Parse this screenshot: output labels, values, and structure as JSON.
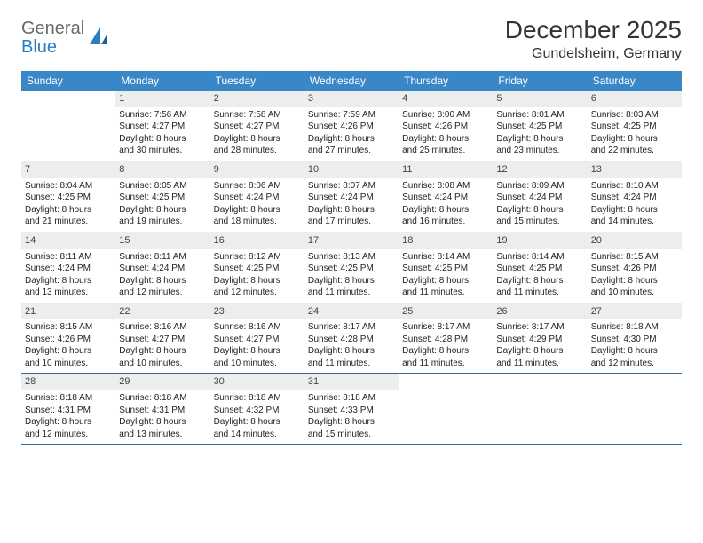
{
  "logo": {
    "general": "General",
    "blue": "Blue"
  },
  "title": "December 2025",
  "location": "Gundelsheim, Germany",
  "colors": {
    "header_bg": "#3a87c8",
    "header_text": "#ffffff",
    "date_bg": "#eceded",
    "week_border": "#3a6a9a",
    "logo_blue": "#2b7cc1",
    "logo_gray": "#6a6a6a"
  },
  "day_names": [
    "Sunday",
    "Monday",
    "Tuesday",
    "Wednesday",
    "Thursday",
    "Friday",
    "Saturday"
  ],
  "weeks": [
    [
      {
        "empty": true
      },
      {
        "d": "1",
        "sr": "Sunrise: 7:56 AM",
        "ss": "Sunset: 4:27 PM",
        "dl1": "Daylight: 8 hours",
        "dl2": "and 30 minutes."
      },
      {
        "d": "2",
        "sr": "Sunrise: 7:58 AM",
        "ss": "Sunset: 4:27 PM",
        "dl1": "Daylight: 8 hours",
        "dl2": "and 28 minutes."
      },
      {
        "d": "3",
        "sr": "Sunrise: 7:59 AM",
        "ss": "Sunset: 4:26 PM",
        "dl1": "Daylight: 8 hours",
        "dl2": "and 27 minutes."
      },
      {
        "d": "4",
        "sr": "Sunrise: 8:00 AM",
        "ss": "Sunset: 4:26 PM",
        "dl1": "Daylight: 8 hours",
        "dl2": "and 25 minutes."
      },
      {
        "d": "5",
        "sr": "Sunrise: 8:01 AM",
        "ss": "Sunset: 4:25 PM",
        "dl1": "Daylight: 8 hours",
        "dl2": "and 23 minutes."
      },
      {
        "d": "6",
        "sr": "Sunrise: 8:03 AM",
        "ss": "Sunset: 4:25 PM",
        "dl1": "Daylight: 8 hours",
        "dl2": "and 22 minutes."
      }
    ],
    [
      {
        "d": "7",
        "sr": "Sunrise: 8:04 AM",
        "ss": "Sunset: 4:25 PM",
        "dl1": "Daylight: 8 hours",
        "dl2": "and 21 minutes."
      },
      {
        "d": "8",
        "sr": "Sunrise: 8:05 AM",
        "ss": "Sunset: 4:25 PM",
        "dl1": "Daylight: 8 hours",
        "dl2": "and 19 minutes."
      },
      {
        "d": "9",
        "sr": "Sunrise: 8:06 AM",
        "ss": "Sunset: 4:24 PM",
        "dl1": "Daylight: 8 hours",
        "dl2": "and 18 minutes."
      },
      {
        "d": "10",
        "sr": "Sunrise: 8:07 AM",
        "ss": "Sunset: 4:24 PM",
        "dl1": "Daylight: 8 hours",
        "dl2": "and 17 minutes."
      },
      {
        "d": "11",
        "sr": "Sunrise: 8:08 AM",
        "ss": "Sunset: 4:24 PM",
        "dl1": "Daylight: 8 hours",
        "dl2": "and 16 minutes."
      },
      {
        "d": "12",
        "sr": "Sunrise: 8:09 AM",
        "ss": "Sunset: 4:24 PM",
        "dl1": "Daylight: 8 hours",
        "dl2": "and 15 minutes."
      },
      {
        "d": "13",
        "sr": "Sunrise: 8:10 AM",
        "ss": "Sunset: 4:24 PM",
        "dl1": "Daylight: 8 hours",
        "dl2": "and 14 minutes."
      }
    ],
    [
      {
        "d": "14",
        "sr": "Sunrise: 8:11 AM",
        "ss": "Sunset: 4:24 PM",
        "dl1": "Daylight: 8 hours",
        "dl2": "and 13 minutes."
      },
      {
        "d": "15",
        "sr": "Sunrise: 8:11 AM",
        "ss": "Sunset: 4:24 PM",
        "dl1": "Daylight: 8 hours",
        "dl2": "and 12 minutes."
      },
      {
        "d": "16",
        "sr": "Sunrise: 8:12 AM",
        "ss": "Sunset: 4:25 PM",
        "dl1": "Daylight: 8 hours",
        "dl2": "and 12 minutes."
      },
      {
        "d": "17",
        "sr": "Sunrise: 8:13 AM",
        "ss": "Sunset: 4:25 PM",
        "dl1": "Daylight: 8 hours",
        "dl2": "and 11 minutes."
      },
      {
        "d": "18",
        "sr": "Sunrise: 8:14 AM",
        "ss": "Sunset: 4:25 PM",
        "dl1": "Daylight: 8 hours",
        "dl2": "and 11 minutes."
      },
      {
        "d": "19",
        "sr": "Sunrise: 8:14 AM",
        "ss": "Sunset: 4:25 PM",
        "dl1": "Daylight: 8 hours",
        "dl2": "and 11 minutes."
      },
      {
        "d": "20",
        "sr": "Sunrise: 8:15 AM",
        "ss": "Sunset: 4:26 PM",
        "dl1": "Daylight: 8 hours",
        "dl2": "and 10 minutes."
      }
    ],
    [
      {
        "d": "21",
        "sr": "Sunrise: 8:15 AM",
        "ss": "Sunset: 4:26 PM",
        "dl1": "Daylight: 8 hours",
        "dl2": "and 10 minutes."
      },
      {
        "d": "22",
        "sr": "Sunrise: 8:16 AM",
        "ss": "Sunset: 4:27 PM",
        "dl1": "Daylight: 8 hours",
        "dl2": "and 10 minutes."
      },
      {
        "d": "23",
        "sr": "Sunrise: 8:16 AM",
        "ss": "Sunset: 4:27 PM",
        "dl1": "Daylight: 8 hours",
        "dl2": "and 10 minutes."
      },
      {
        "d": "24",
        "sr": "Sunrise: 8:17 AM",
        "ss": "Sunset: 4:28 PM",
        "dl1": "Daylight: 8 hours",
        "dl2": "and 11 minutes."
      },
      {
        "d": "25",
        "sr": "Sunrise: 8:17 AM",
        "ss": "Sunset: 4:28 PM",
        "dl1": "Daylight: 8 hours",
        "dl2": "and 11 minutes."
      },
      {
        "d": "26",
        "sr": "Sunrise: 8:17 AM",
        "ss": "Sunset: 4:29 PM",
        "dl1": "Daylight: 8 hours",
        "dl2": "and 11 minutes."
      },
      {
        "d": "27",
        "sr": "Sunrise: 8:18 AM",
        "ss": "Sunset: 4:30 PM",
        "dl1": "Daylight: 8 hours",
        "dl2": "and 12 minutes."
      }
    ],
    [
      {
        "d": "28",
        "sr": "Sunrise: 8:18 AM",
        "ss": "Sunset: 4:31 PM",
        "dl1": "Daylight: 8 hours",
        "dl2": "and 12 minutes."
      },
      {
        "d": "29",
        "sr": "Sunrise: 8:18 AM",
        "ss": "Sunset: 4:31 PM",
        "dl1": "Daylight: 8 hours",
        "dl2": "and 13 minutes."
      },
      {
        "d": "30",
        "sr": "Sunrise: 8:18 AM",
        "ss": "Sunset: 4:32 PM",
        "dl1": "Daylight: 8 hours",
        "dl2": "and 14 minutes."
      },
      {
        "d": "31",
        "sr": "Sunrise: 8:18 AM",
        "ss": "Sunset: 4:33 PM",
        "dl1": "Daylight: 8 hours",
        "dl2": "and 15 minutes."
      },
      {
        "empty": true
      },
      {
        "empty": true
      },
      {
        "empty": true
      }
    ]
  ]
}
